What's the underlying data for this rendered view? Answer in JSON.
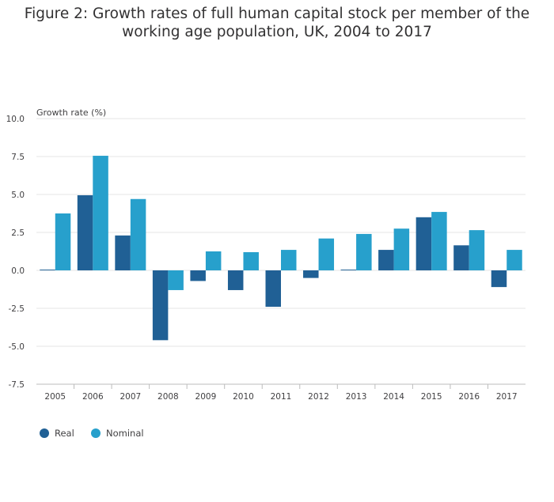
{
  "chart_data": {
    "type": "bar",
    "title_lines": [
      "Figure 2: Growth rates of full human capital stock per member of the",
      "working age population, UK, 2004 to 2017"
    ],
    "ylabel": "Growth rate (%)",
    "xlabel": "",
    "ylim": [
      -7.5,
      10.0
    ],
    "yticks": [
      10.0,
      7.5,
      5.0,
      2.5,
      0.0,
      -2.5,
      -5.0,
      -7.5
    ],
    "ytick_labels": [
      "10.0",
      "7.5",
      "5.0",
      "2.5",
      "0.0",
      "-2.5",
      "-5.0",
      "-7.5"
    ],
    "grid": true,
    "legend_position": "bottom-left",
    "categories": [
      "2005",
      "2006",
      "2007",
      "2008",
      "2009",
      "2010",
      "2011",
      "2012",
      "2013",
      "2014",
      "2015",
      "2016",
      "2017"
    ],
    "series": [
      {
        "name": "Real",
        "color": "#206095",
        "values": [
          0.05,
          4.95,
          2.3,
          -4.6,
          -0.7,
          -1.3,
          -2.4,
          -0.5,
          0.05,
          1.35,
          3.5,
          1.65,
          -1.1
        ]
      },
      {
        "name": "Nominal",
        "color": "#27a0cc",
        "values": [
          3.75,
          7.55,
          4.7,
          -1.3,
          1.25,
          1.2,
          1.35,
          2.1,
          2.4,
          2.75,
          3.85,
          2.65,
          1.35
        ]
      }
    ]
  }
}
